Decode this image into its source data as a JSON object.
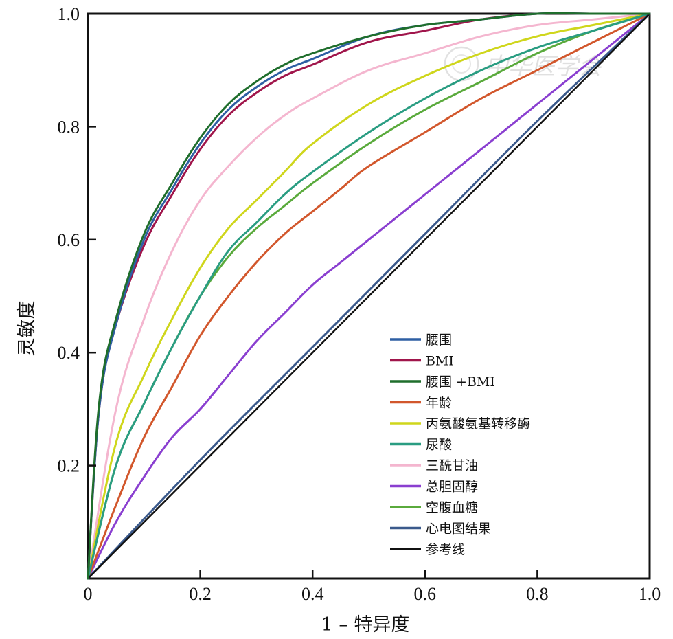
{
  "chart_data": {
    "type": "line",
    "title": "",
    "xlabel": "1 – 特异度",
    "ylabel": "灵敏度",
    "xlim": [
      0,
      1
    ],
    "ylim": [
      0,
      1
    ],
    "x_ticks": [
      "0",
      "0.2",
      "0.4",
      "0.6",
      "0.8",
      "1.0"
    ],
    "y_ticks": [
      "0.2",
      "0.4",
      "0.6",
      "0.8",
      "1.0"
    ],
    "grid": false,
    "legend_position": "lower-right",
    "series": [
      {
        "name": "腰围",
        "color": "#2e5fa3",
        "x": [
          0,
          0.02,
          0.05,
          0.1,
          0.15,
          0.2,
          0.25,
          0.3,
          0.35,
          0.4,
          0.5,
          0.6,
          0.7,
          0.8,
          0.9,
          1.0
        ],
        "y": [
          0,
          0.3,
          0.45,
          0.6,
          0.69,
          0.77,
          0.83,
          0.87,
          0.9,
          0.92,
          0.96,
          0.98,
          0.99,
          1.0,
          1.0,
          1.0
        ]
      },
      {
        "name": "BMI",
        "color": "#a0154b",
        "x": [
          0,
          0.02,
          0.05,
          0.1,
          0.15,
          0.2,
          0.25,
          0.3,
          0.35,
          0.4,
          0.5,
          0.6,
          0.7,
          0.8,
          0.9,
          1.0
        ],
        "y": [
          0,
          0.3,
          0.45,
          0.59,
          0.68,
          0.76,
          0.82,
          0.86,
          0.89,
          0.91,
          0.95,
          0.97,
          0.99,
          1.0,
          1.0,
          1.0
        ]
      },
      {
        "name": "腰围 +BMI",
        "color": "#1f6e2c",
        "x": [
          0,
          0.02,
          0.05,
          0.1,
          0.15,
          0.2,
          0.25,
          0.3,
          0.35,
          0.4,
          0.5,
          0.6,
          0.7,
          0.8,
          0.9,
          1.0
        ],
        "y": [
          0,
          0.31,
          0.46,
          0.61,
          0.7,
          0.78,
          0.84,
          0.88,
          0.91,
          0.93,
          0.96,
          0.98,
          0.99,
          1.0,
          1.0,
          1.0
        ]
      },
      {
        "name": "年龄",
        "color": "#d2572c",
        "x": [
          0,
          0.05,
          0.1,
          0.15,
          0.2,
          0.25,
          0.3,
          0.35,
          0.4,
          0.45,
          0.5,
          0.6,
          0.7,
          0.8,
          0.9,
          1.0
        ],
        "y": [
          0,
          0.13,
          0.25,
          0.34,
          0.43,
          0.5,
          0.56,
          0.61,
          0.65,
          0.69,
          0.73,
          0.79,
          0.85,
          0.9,
          0.95,
          1.0
        ]
      },
      {
        "name": "丙氨酸氨基转移酶",
        "color": "#cfd61c",
        "x": [
          0,
          0.05,
          0.1,
          0.15,
          0.2,
          0.25,
          0.3,
          0.35,
          0.4,
          0.5,
          0.6,
          0.7,
          0.8,
          0.9,
          1.0
        ],
        "y": [
          0,
          0.24,
          0.36,
          0.46,
          0.55,
          0.62,
          0.67,
          0.72,
          0.77,
          0.84,
          0.89,
          0.93,
          0.96,
          0.98,
          1.0
        ]
      },
      {
        "name": "尿酸",
        "color": "#2a9d82",
        "x": [
          0,
          0.05,
          0.1,
          0.15,
          0.2,
          0.25,
          0.3,
          0.35,
          0.4,
          0.5,
          0.6,
          0.7,
          0.8,
          0.9,
          1.0
        ],
        "y": [
          0,
          0.2,
          0.31,
          0.41,
          0.5,
          0.58,
          0.63,
          0.68,
          0.72,
          0.79,
          0.85,
          0.9,
          0.94,
          0.97,
          1.0
        ]
      },
      {
        "name": "三酰甘油",
        "color": "#f4b6cf",
        "x": [
          0,
          0.05,
          0.1,
          0.15,
          0.2,
          0.25,
          0.3,
          0.35,
          0.4,
          0.5,
          0.6,
          0.7,
          0.8,
          0.9,
          1.0
        ],
        "y": [
          0,
          0.3,
          0.46,
          0.58,
          0.67,
          0.73,
          0.78,
          0.82,
          0.85,
          0.9,
          0.93,
          0.96,
          0.98,
          0.99,
          1.0
        ]
      },
      {
        "name": "总胆固醇",
        "color": "#8a3fd0",
        "x": [
          0,
          0.05,
          0.1,
          0.15,
          0.2,
          0.25,
          0.3,
          0.35,
          0.4,
          0.45,
          0.5,
          0.6,
          0.7,
          0.8,
          0.9,
          1.0
        ],
        "y": [
          0,
          0.1,
          0.18,
          0.25,
          0.3,
          0.36,
          0.42,
          0.47,
          0.52,
          0.56,
          0.6,
          0.68,
          0.76,
          0.84,
          0.92,
          1.0
        ]
      },
      {
        "name": "空腹血糖",
        "color": "#5aaa3c",
        "x": [
          0,
          0.05,
          0.1,
          0.15,
          0.2,
          0.25,
          0.3,
          0.35,
          0.4,
          0.5,
          0.6,
          0.7,
          0.8,
          0.9,
          1.0
        ],
        "y": [
          0,
          0.2,
          0.31,
          0.41,
          0.5,
          0.57,
          0.62,
          0.66,
          0.7,
          0.77,
          0.83,
          0.88,
          0.93,
          0.97,
          1.0
        ]
      },
      {
        "name": "心电图结果",
        "color": "#3b5a8c",
        "x": [
          0,
          0.2,
          0.4,
          0.6,
          0.8,
          1.0
        ],
        "y": [
          0,
          0.21,
          0.41,
          0.61,
          0.81,
          1.0
        ]
      },
      {
        "name": "参考线",
        "color": "#111111",
        "x": [
          0,
          1
        ],
        "y": [
          0,
          1
        ]
      }
    ]
  },
  "watermark": {
    "text": "中华医学会"
  }
}
